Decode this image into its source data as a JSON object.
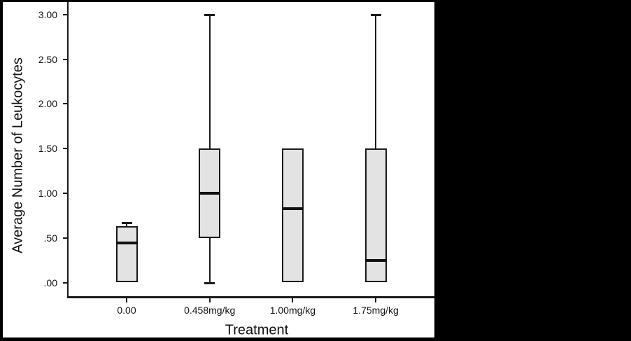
{
  "figure": {
    "background_color": "#ffffff",
    "letterbox_color": "#000000",
    "box_fill_color": "#e3e3e3",
    "line_color": "#1a1a1a"
  },
  "chart_data": {
    "type": "boxplot",
    "title": "",
    "xlabel": "Treatment",
    "ylabel": "Average Number of Leukocytes",
    "categories": [
      "0.00",
      "0.458mg/kg",
      "1.00mg/kg",
      "1.75mg/kg"
    ],
    "y_tick_labels": [
      "3.00",
      "2.50",
      "2.00",
      "1.50",
      "1.00",
      ".50",
      ".00"
    ],
    "y_tick_values": [
      3.0,
      2.5,
      2.0,
      1.5,
      1.0,
      0.5,
      0.0
    ],
    "ylim": [
      -0.15,
      3.15
    ],
    "grid": "off",
    "legend": "none",
    "series": [
      {
        "category": "0.00",
        "min": 0.0,
        "q1": 0.0,
        "median": 0.44,
        "q3": 0.63,
        "max": 0.67
      },
      {
        "category": "0.458mg/kg",
        "min": 0.0,
        "q1": 0.5,
        "median": 1.0,
        "q3": 1.5,
        "max": 3.0
      },
      {
        "category": "1.00mg/kg",
        "min": 0.0,
        "q1": 0.0,
        "median": 0.83,
        "q3": 1.5,
        "max": 1.5
      },
      {
        "category": "1.75mg/kg",
        "min": 0.0,
        "q1": 0.0,
        "median": 0.25,
        "q3": 1.5,
        "max": 3.0
      }
    ]
  }
}
